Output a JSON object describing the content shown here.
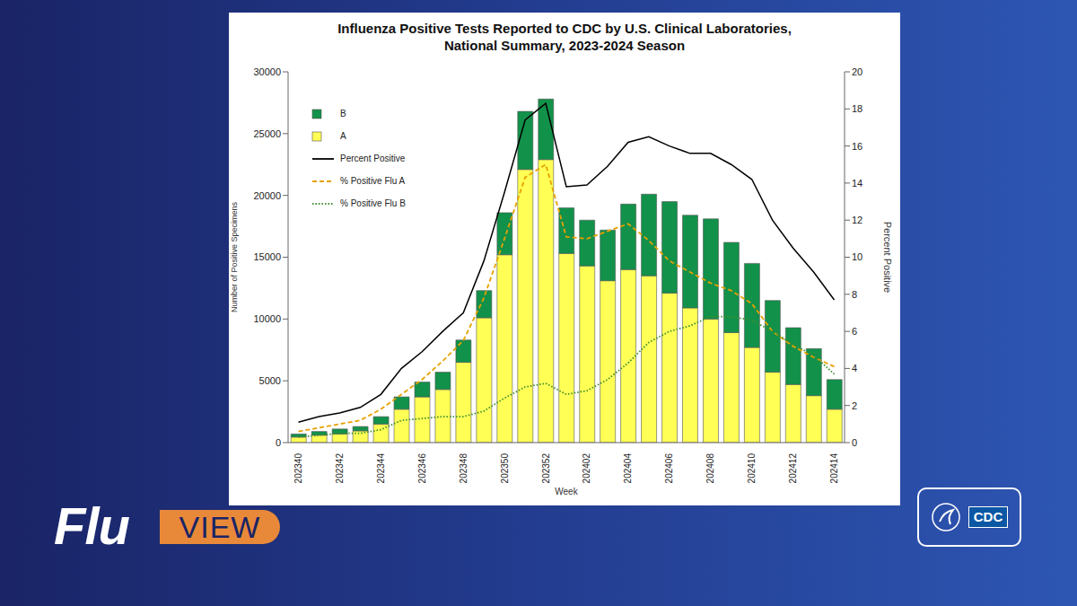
{
  "chart_data": {
    "type": "bar",
    "title": "Influenza Positive Tests Reported to CDC by U.S. Clinical Laboratories,\nNational Summary, 2023-2024 Season",
    "x_label": "Week",
    "y_label": "Number of Positive Specimens",
    "y2_label": "Percent Positive",
    "categories": [
      "202340",
      null,
      "202342",
      null,
      "202344",
      null,
      "202346",
      null,
      "202348",
      null,
      "202350",
      null,
      "202352",
      null,
      "202402",
      null,
      "202404",
      null,
      "202406",
      null,
      "202408",
      null,
      "202410",
      null,
      "202412",
      null,
      "202414"
    ],
    "stacked": true,
    "grid": false,
    "legend": "upper left",
    "ylim": [
      0,
      30000
    ],
    "yticks": [
      0,
      5000,
      10000,
      15000,
      20000,
      25000,
      30000
    ],
    "y2lim": [
      0,
      20
    ],
    "y2ticks": [
      0,
      2,
      4,
      6,
      8,
      10,
      12,
      14,
      16,
      18,
      20
    ],
    "series": [
      {
        "name": "B",
        "type": "bar",
        "color": "#12914a",
        "values": [
          250,
          300,
          400,
          350,
          600,
          1000,
          1200,
          1400,
          1800,
          2200,
          3400,
          4700,
          4900,
          3700,
          3700,
          4100,
          5300,
          6600,
          7400,
          7500,
          8100,
          7300,
          6800,
          5800,
          4600,
          3800,
          2400
        ]
      },
      {
        "name": "A",
        "type": "bar",
        "color": "#ffff55",
        "values": [
          450,
          600,
          700,
          950,
          1500,
          2700,
          3700,
          4300,
          6500,
          10100,
          15200,
          22100,
          22900,
          15300,
          14300,
          13100,
          14000,
          13500,
          12100,
          10900,
          10000,
          8900,
          7700,
          5700,
          4700,
          3800,
          2700
        ]
      },
      {
        "name": "Percent Positive",
        "type": "line",
        "axis": "y2",
        "color": "#000000",
        "line_style": "solid",
        "values": [
          1.1,
          1.4,
          1.6,
          1.9,
          2.6,
          4.0,
          4.9,
          6.0,
          7.0,
          9.8,
          13.5,
          17.4,
          18.3,
          13.8,
          13.9,
          14.9,
          16.2,
          16.5,
          16.0,
          15.6,
          15.6,
          15.0,
          14.2,
          12.0,
          10.5,
          9.2,
          7.7
        ]
      },
      {
        "name": "% Positive Flu A",
        "type": "line",
        "axis": "y2",
        "color": "#e6a100",
        "line_style": "dashed",
        "values": [
          0.6,
          0.8,
          1.0,
          1.2,
          1.8,
          2.6,
          3.4,
          4.4,
          5.5,
          7.8,
          11.0,
          14.3,
          15.0,
          11.1,
          11.0,
          11.4,
          11.8,
          10.9,
          9.8,
          9.2,
          8.6,
          8.2,
          7.5,
          6.0,
          5.2,
          4.6,
          4.1
        ]
      },
      {
        "name": "% Positive Flu B",
        "type": "line",
        "axis": "y2",
        "color": "#3f8f2f",
        "line_style": "dotted",
        "values": [
          0.3,
          0.4,
          0.5,
          0.5,
          0.7,
          1.2,
          1.3,
          1.4,
          1.4,
          1.7,
          2.4,
          3.0,
          3.2,
          2.6,
          2.8,
          3.4,
          4.3,
          5.4,
          6.0,
          6.3,
          6.8,
          6.8,
          6.6,
          6.0,
          5.3,
          4.7,
          3.7
        ]
      }
    ]
  },
  "branding": {
    "logo": "Flu",
    "logo_tag": "VIEW",
    "agency": "CDC"
  }
}
